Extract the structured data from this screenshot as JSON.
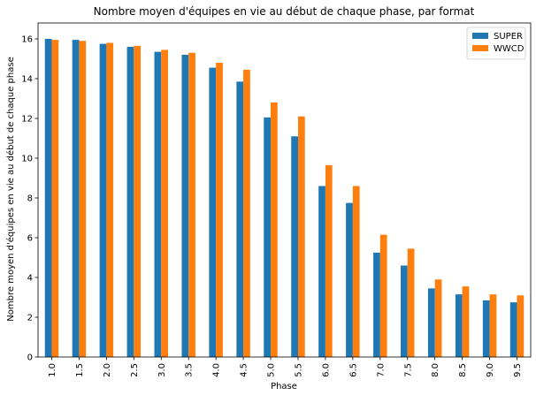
{
  "chart_data": {
    "type": "bar",
    "title": "Nombre moyen d'équipes en vie au début de chaque phase, par format",
    "xlabel": "Phase",
    "ylabel": "Nombre moyen d'équipes en vie au début de chaque phase",
    "categories": [
      "1.0",
      "1.5",
      "2.0",
      "2.5",
      "3.0",
      "3.5",
      "4.0",
      "4.5",
      "5.0",
      "5.5",
      "6.0",
      "6.5",
      "7.0",
      "7.5",
      "8.0",
      "8.5",
      "9.0",
      "9.5"
    ],
    "series": [
      {
        "name": "SUPER",
        "color": "#1f77b4",
        "values": [
          16.0,
          15.95,
          15.75,
          15.6,
          15.35,
          15.2,
          14.55,
          13.85,
          12.05,
          11.1,
          8.6,
          7.75,
          5.25,
          4.6,
          3.45,
          3.15,
          2.85,
          2.75
        ]
      },
      {
        "name": "WWCD",
        "color": "#ff7f0e",
        "values": [
          15.95,
          15.9,
          15.8,
          15.65,
          15.45,
          15.3,
          14.8,
          14.45,
          12.8,
          12.1,
          9.65,
          8.6,
          6.15,
          5.45,
          3.9,
          3.55,
          3.15,
          3.1
        ]
      }
    ],
    "ylim": [
      0,
      16.8
    ],
    "yticks": [
      0,
      2,
      4,
      6,
      8,
      10,
      12,
      14,
      16
    ],
    "grid": false,
    "legend": "top-right"
  }
}
